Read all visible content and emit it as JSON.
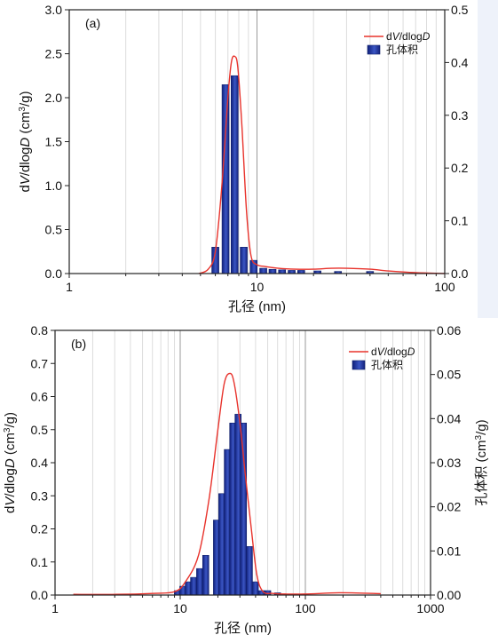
{
  "chart_data": [
    {
      "type": "bar",
      "panel_label": "(a)",
      "xlabel": "孔径 (nm)",
      "ylabel_left": "dV/dlogD (cm³/g)",
      "ylabel_right": "",
      "x_scale": "log",
      "xlim": [
        1,
        100
      ],
      "ylim_left": [
        0,
        3.0
      ],
      "ylim_right": [
        0,
        0.5
      ],
      "x_ticks": [
        1,
        10,
        100
      ],
      "x_tick_labels": [
        "1",
        "10",
        "100"
      ],
      "y_left_ticks": [
        0.0,
        0.5,
        1.0,
        1.5,
        2.0,
        2.5,
        3.0
      ],
      "y_left_tick_labels": [
        "0.0",
        "0.5",
        "1.0",
        "1.5",
        "2.0",
        "2.5",
        "3.0"
      ],
      "y_right_ticks": [
        0.0,
        0.1,
        0.2,
        0.3,
        0.4,
        0.5
      ],
      "y_right_tick_labels": [
        "0.0",
        "0.1",
        "0.2",
        "0.3",
        "0.4",
        "0.5"
      ],
      "grid": "vertical minor lines on log x-axis",
      "legend_position": "top-right",
      "series": [
        {
          "name": "dV/dlogD",
          "kind": "line",
          "axis": "left",
          "color": "#e8332c",
          "x": [
            4.9,
            5.5,
            6.0,
            6.5,
            7.0,
            7.3,
            7.6,
            7.9,
            8.3,
            8.8,
            9.3,
            10.0,
            11,
            13,
            16,
            20,
            25,
            30,
            40,
            50,
            70,
            100
          ],
          "y": [
            0.0,
            0.05,
            0.25,
            1.0,
            2.0,
            2.4,
            2.47,
            2.35,
            1.7,
            0.7,
            0.2,
            0.1,
            0.08,
            0.06,
            0.05,
            0.05,
            0.06,
            0.06,
            0.05,
            0.03,
            0.01,
            0.0
          ]
        },
        {
          "name": "孔体积",
          "kind": "bar",
          "axis": "right",
          "color": "#1a2d8c",
          "x": [
            6.0,
            6.8,
            7.6,
            8.5,
            9.6,
            10.8,
            12.1,
            13.6,
            15.3,
            17.2,
            21.0,
            27.0,
            40.0
          ],
          "y": [
            0.05,
            0.358,
            0.375,
            0.05,
            0.025,
            0.01,
            0.008,
            0.007,
            0.006,
            0.006,
            0.005,
            0.004,
            0.004
          ]
        }
      ]
    },
    {
      "type": "bar",
      "panel_label": "(b)",
      "xlabel": "孔径 (nm)",
      "ylabel_left": "dV/dlogD (cm³/g)",
      "ylabel_right": "孔体积 (cm³/g)",
      "x_scale": "log",
      "xlim": [
        1,
        1000
      ],
      "ylim_left": [
        0,
        0.8
      ],
      "ylim_right": [
        0,
        0.06
      ],
      "x_ticks": [
        1,
        10,
        100,
        1000
      ],
      "x_tick_labels": [
        "1",
        "10",
        "100",
        "1000"
      ],
      "y_left_ticks": [
        0.0,
        0.1,
        0.2,
        0.3,
        0.4,
        0.5,
        0.6,
        0.7,
        0.8
      ],
      "y_left_tick_labels": [
        "0.0",
        "0.1",
        "0.2",
        "0.3",
        "0.4",
        "0.5",
        "0.6",
        "0.7",
        "0.8"
      ],
      "y_right_ticks": [
        0.0,
        0.01,
        0.02,
        0.03,
        0.04,
        0.05,
        0.06
      ],
      "y_right_tick_labels": [
        "0.00",
        "0.01",
        "0.02",
        "0.03",
        "0.04",
        "0.05",
        "0.06"
      ],
      "grid": "vertical minor lines on log x-axis",
      "legend_position": "top-right",
      "series": [
        {
          "name": "dV/dlogD",
          "kind": "line",
          "axis": "left",
          "color": "#e8332c",
          "x": [
            1.4,
            3,
            6,
            9,
            11,
            14,
            17,
            20,
            22.5,
            25,
            27,
            30,
            33,
            37,
            41,
            46,
            55,
            70,
            100,
            200,
            400
          ],
          "y": [
            0.002,
            0.002,
            0.005,
            0.01,
            0.04,
            0.12,
            0.29,
            0.5,
            0.64,
            0.67,
            0.64,
            0.52,
            0.37,
            0.2,
            0.06,
            0.01,
            0.005,
            0.003,
            0.003,
            0.007,
            0.004
          ]
        },
        {
          "name": "孔体积",
          "kind": "bar",
          "axis": "right",
          "color": "#1a2d8c",
          "x": [
            9.5,
            10.5,
            11.6,
            12.8,
            14.3,
            16.0,
            19.5,
            21.5,
            23.8,
            26.3,
            29.0,
            32.0,
            35.7,
            39.8,
            44.5,
            50.0,
            60.0
          ],
          "y": [
            0.001,
            0.002,
            0.003,
            0.004,
            0.006,
            0.009,
            0.017,
            0.023,
            0.033,
            0.039,
            0.041,
            0.039,
            0.011,
            0.003,
            0.001,
            0.001,
            0.0005
          ]
        }
      ]
    }
  ]
}
